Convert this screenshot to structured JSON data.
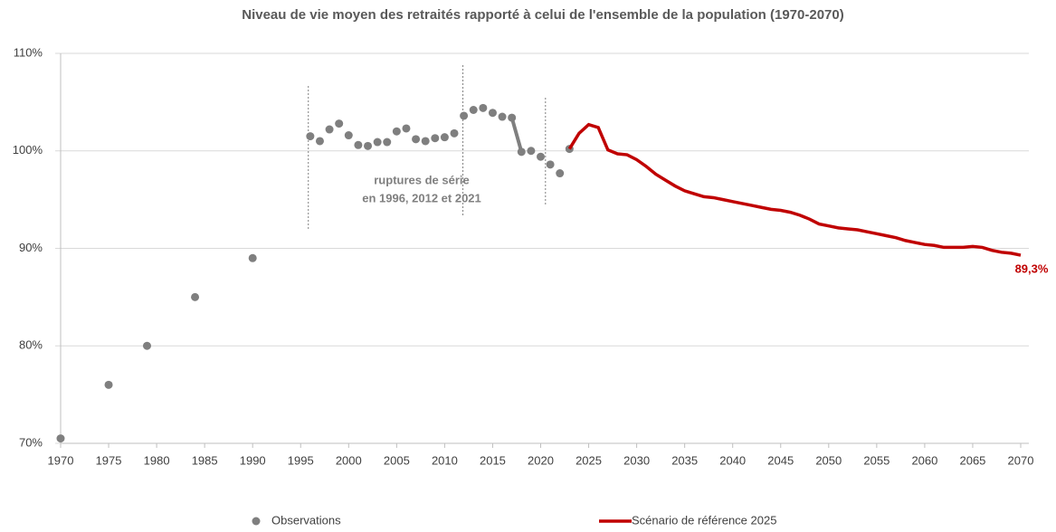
{
  "chart_data": {
    "type": "scatter-line",
    "title": "Niveau de vie moyen des retraités rapporté à celui de l'ensemble de la population (1970-2070)",
    "xlim": [
      1970,
      2070
    ],
    "xticks": [
      1970,
      1975,
      1980,
      1985,
      1990,
      1995,
      2000,
      2005,
      2010,
      2015,
      2020,
      2025,
      2030,
      2035,
      2040,
      2045,
      2050,
      2055,
      2060,
      2065,
      2070
    ],
    "ylim": [
      70,
      110
    ],
    "yticks": [
      {
        "value": 70,
        "label": "70%"
      },
      {
        "value": 80,
        "label": "80%"
      },
      {
        "value": 90,
        "label": "90%"
      },
      {
        "value": 100,
        "label": "100%"
      },
      {
        "value": 110,
        "label": "110%"
      }
    ],
    "grid": true,
    "series": [
      {
        "name": "Observations",
        "kind": "scatter",
        "color": "#7f7f7f",
        "x": [
          1970,
          1975,
          1979,
          1984,
          1990,
          1996,
          1997,
          1998,
          1999,
          2000,
          2001,
          2002,
          2003,
          2004,
          2005,
          2006,
          2007,
          2008,
          2009,
          2010,
          2011,
          2012,
          2013,
          2014,
          2015,
          2016,
          2017,
          2018,
          2019,
          2020,
          2021,
          2022,
          2023
        ],
        "values": [
          70.5,
          76.0,
          80.0,
          85.0,
          89.0,
          101.5,
          101.0,
          102.2,
          102.8,
          101.6,
          100.6,
          100.5,
          100.9,
          100.9,
          102.0,
          102.3,
          101.2,
          101.0,
          101.3,
          101.4,
          101.8,
          103.6,
          104.2,
          104.4,
          103.9,
          103.5,
          103.4,
          99.9,
          100.0,
          99.4,
          98.6,
          97.7,
          100.2
        ]
      },
      {
        "name": "Scénario de référence 2025",
        "kind": "line",
        "color": "#c00000",
        "x": [
          2023,
          2024,
          2025,
          2026,
          2027,
          2028,
          2029,
          2030,
          2031,
          2032,
          2033,
          2034,
          2035,
          2036,
          2037,
          2038,
          2039,
          2040,
          2041,
          2042,
          2043,
          2044,
          2045,
          2046,
          2047,
          2048,
          2049,
          2050,
          2051,
          2052,
          2053,
          2054,
          2055,
          2056,
          2057,
          2058,
          2059,
          2060,
          2061,
          2062,
          2063,
          2064,
          2065,
          2066,
          2067,
          2068,
          2069,
          2070
        ],
        "values": [
          100.2,
          101.8,
          102.7,
          102.4,
          100.1,
          99.7,
          99.6,
          99.1,
          98.4,
          97.6,
          97.0,
          96.4,
          95.9,
          95.6,
          95.3,
          95.2,
          95.0,
          94.8,
          94.6,
          94.4,
          94.2,
          94.0,
          93.9,
          93.7,
          93.4,
          93.0,
          92.5,
          92.3,
          92.1,
          92.0,
          91.9,
          91.7,
          91.5,
          91.3,
          91.1,
          90.8,
          90.6,
          90.4,
          90.3,
          90.1,
          90.1,
          90.1,
          90.2,
          90.1,
          89.8,
          89.6,
          89.5,
          89.3
        ],
        "value_labels": [
          null,
          null,
          null,
          null,
          null,
          null,
          null,
          null,
          null,
          null,
          null,
          null,
          null,
          null,
          null,
          null,
          null,
          null,
          null,
          null,
          null,
          null,
          null,
          null,
          null,
          null,
          null,
          null,
          null,
          null,
          null,
          null,
          null,
          null,
          null,
          null,
          null,
          null,
          null,
          null,
          null,
          null,
          null,
          null,
          null,
          null,
          null,
          "89,3%"
        ]
      }
    ],
    "annotation": {
      "lines": [
        "ruptures de série",
        "en 1996, 2012 et 2021"
      ],
      "breaks": [
        1995.8,
        2011.9,
        2020.5
      ]
    }
  }
}
